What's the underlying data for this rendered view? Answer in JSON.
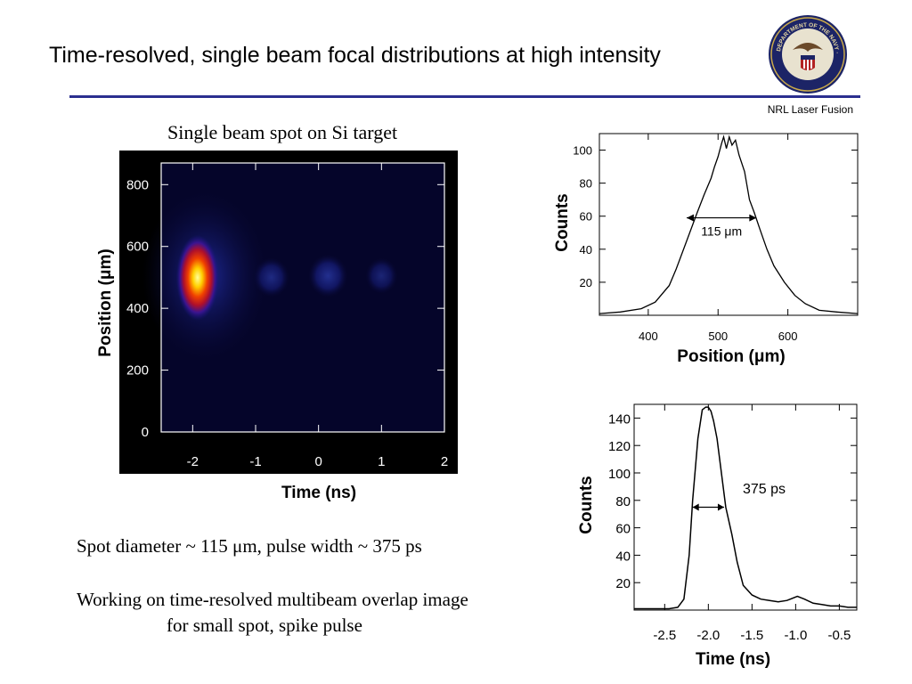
{
  "slide": {
    "title": "Time-resolved, single beam focal distributions at high intensity",
    "org": "NRL Laser Fusion",
    "seal_text": "DEPARTMENT OF THE NAVY · NAVAL RESEARCH LABORATORY",
    "image_caption": "Single beam spot on Si target",
    "note1": "Spot diameter ~ 115 μm, pulse width  ~ 375 ps",
    "note2_line1": "Working on time-resolved multibeam overlap image",
    "note2_line2": "for small spot, spike pulse"
  },
  "colors": {
    "rule": "#2b2f8f",
    "image_bg": "#000000",
    "image_field": "#05052a"
  },
  "chart_data": [
    {
      "type": "heatmap",
      "xlabel": "Time (ns)",
      "ylabel": "Position (μm)",
      "xticks": [
        "-2",
        "-1",
        "0",
        "1",
        "2"
      ],
      "yticks": [
        "0",
        "200",
        "400",
        "600",
        "800"
      ],
      "xlim": [
        -2.5,
        2.0
      ],
      "ylim": [
        0,
        870
      ],
      "hotspot": {
        "time_ns": -1.95,
        "position_um": 505,
        "level": 1.0
      },
      "faint_spots": [
        {
          "time_ns": -0.75,
          "position_um": 500,
          "level": 0.15
        },
        {
          "time_ns": 0.15,
          "position_um": 505,
          "level": 0.2
        },
        {
          "time_ns": 1.0,
          "position_um": 505,
          "level": 0.1
        }
      ]
    },
    {
      "type": "line",
      "xlabel": "Position (μm)",
      "ylabel": "Counts",
      "xticks": [
        "400",
        "500",
        "600"
      ],
      "yticks": [
        "20",
        "40",
        "60",
        "80",
        "100"
      ],
      "xlim": [
        330,
        700
      ],
      "ylim": [
        0,
        110
      ],
      "annotation": {
        "text": "115 μm",
        "x_from": 455,
        "x_to": 555,
        "y": 59
      },
      "series": [
        {
          "x": [
            330,
            360,
            390,
            410,
            430,
            440,
            455,
            470,
            480,
            490,
            495,
            500,
            505,
            508,
            512,
            516,
            520,
            525,
            530,
            538,
            545,
            552,
            560,
            570,
            580,
            595,
            610,
            625,
            645,
            670,
            700
          ],
          "y": [
            1,
            2,
            4,
            8,
            18,
            28,
            45,
            62,
            73,
            83,
            90,
            96,
            104,
            108,
            101,
            108,
            103,
            106,
            97,
            87,
            70,
            62,
            52,
            40,
            30,
            20,
            12,
            7,
            3,
            2,
            1
          ]
        }
      ]
    },
    {
      "type": "line",
      "xlabel": "Time (ns)",
      "ylabel": "Counts",
      "xticks": [
        "-2.5",
        "-2.0",
        "-1.5",
        "-1.0",
        "-0.5"
      ],
      "yticks": [
        "20",
        "40",
        "60",
        "80",
        "100",
        "120",
        "140"
      ],
      "xlim": [
        -2.85,
        -0.3
      ],
      "ylim": [
        0,
        150
      ],
      "annotation": {
        "text": "375 ps",
        "x_from": -2.18,
        "x_to": -1.82,
        "y": 75
      },
      "series": [
        {
          "x": [
            -2.85,
            -2.45,
            -2.35,
            -2.28,
            -2.22,
            -2.18,
            -2.12,
            -2.07,
            -2.03,
            -2.0,
            -1.97,
            -1.94,
            -1.9,
            -1.85,
            -1.8,
            -1.73,
            -1.67,
            -1.6,
            -1.5,
            -1.4,
            -1.3,
            -1.2,
            -1.1,
            -0.98,
            -0.9,
            -0.8,
            -0.7,
            -0.6,
            -0.5,
            -0.4,
            -0.3
          ],
          "y": [
            1,
            1,
            2,
            8,
            40,
            80,
            125,
            146,
            148,
            148,
            145,
            138,
            125,
            100,
            75,
            55,
            35,
            18,
            11,
            8,
            7,
            6,
            7,
            10,
            8,
            5,
            4,
            3,
            3,
            2,
            2
          ]
        }
      ]
    }
  ]
}
